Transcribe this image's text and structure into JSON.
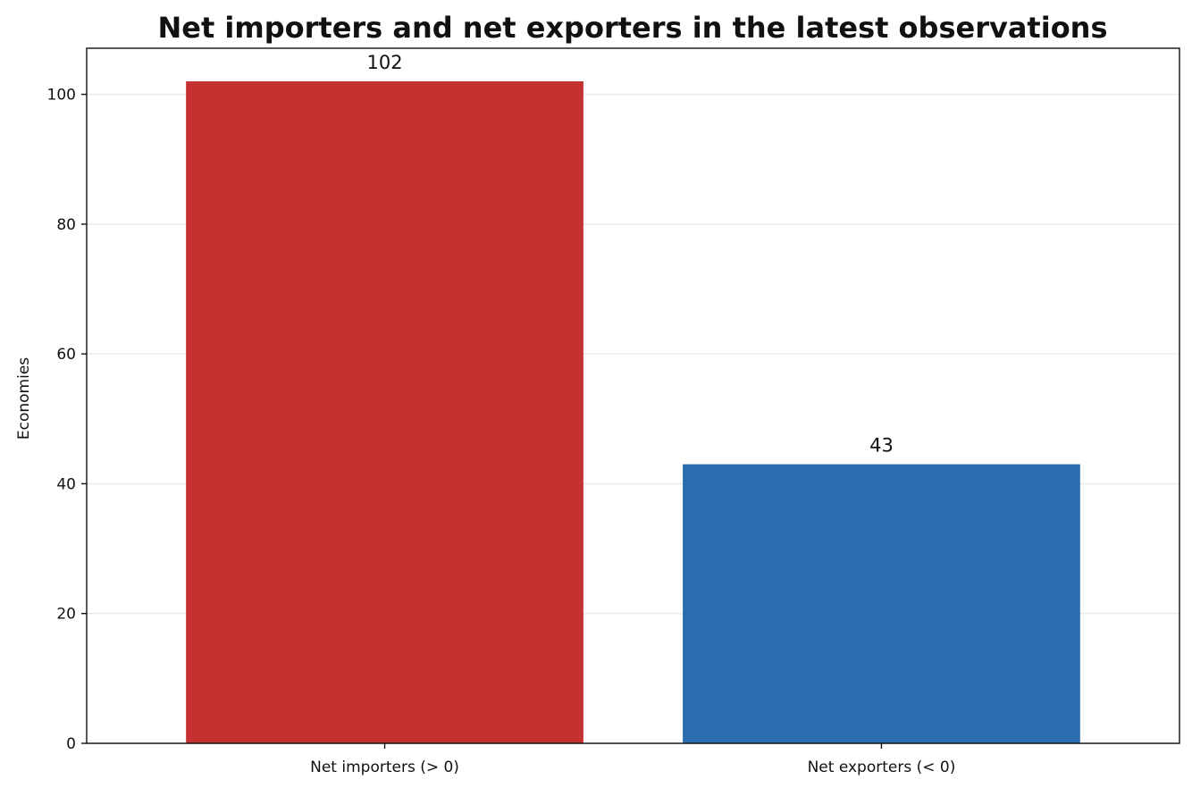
{
  "chart_data": {
    "type": "bar",
    "title": "Net importers and net exporters in the latest observations",
    "xlabel": "",
    "ylabel": "Economies",
    "categories": [
      "Net importers (> 0)",
      "Net exporters (< 0)"
    ],
    "values": [
      102,
      43
    ],
    "data_labels": [
      "102",
      "43"
    ],
    "bar_colors": [
      "#c53030",
      "#2b6cb0"
    ],
    "ylim": [
      0,
      107.1
    ],
    "yticks": [
      0,
      20,
      40,
      60,
      80,
      100
    ],
    "ytick_labels": [
      "0",
      "20",
      "40",
      "60",
      "80",
      "100"
    ],
    "grid": true,
    "grid_axis": "y",
    "legend": false
  }
}
